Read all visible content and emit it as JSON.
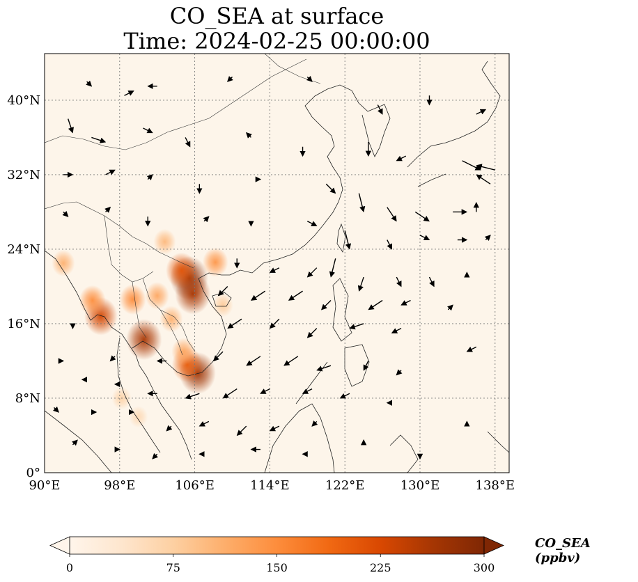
{
  "title_line1": "CO_SEA at surface",
  "title_line2": "Time: 2024-02-25 00:00:00",
  "map": {
    "lon_range": [
      90,
      139.5
    ],
    "lat_range": [
      0,
      45
    ],
    "lon_ticks": [
      {
        "value": 90,
        "label": "90°E"
      },
      {
        "value": 98,
        "label": "98°E"
      },
      {
        "value": 106,
        "label": "106°E"
      },
      {
        "value": 114,
        "label": "114°E"
      },
      {
        "value": 122,
        "label": "122°E"
      },
      {
        "value": 130,
        "label": "130°E"
      },
      {
        "value": 138,
        "label": "138°E"
      }
    ],
    "lat_ticks": [
      {
        "value": 0,
        "label": "0°"
      },
      {
        "value": 8,
        "label": "8°N"
      },
      {
        "value": 16,
        "label": "16°N"
      },
      {
        "value": 24,
        "label": "24°N"
      },
      {
        "value": 32,
        "label": "32°N"
      },
      {
        "value": 40,
        "label": "40°N"
      }
    ],
    "gridlines": true,
    "background_color": "#fdf5ea",
    "hotspots": [
      {
        "lon": 105.4,
        "lat": 20.9,
        "value": 290
      },
      {
        "lon": 105.8,
        "lat": 19.2,
        "value": 260
      },
      {
        "lon": 104.6,
        "lat": 21.7,
        "value": 210
      },
      {
        "lon": 100.6,
        "lat": 14.3,
        "value": 260
      },
      {
        "lon": 106.3,
        "lat": 10.7,
        "value": 270
      },
      {
        "lon": 105.2,
        "lat": 11.6,
        "value": 200
      },
      {
        "lon": 96.0,
        "lat": 16.8,
        "value": 230
      },
      {
        "lon": 95.1,
        "lat": 18.5,
        "value": 150
      },
      {
        "lon": 99.4,
        "lat": 18.6,
        "value": 150
      },
      {
        "lon": 102.0,
        "lat": 19.0,
        "value": 120
      },
      {
        "lon": 103.5,
        "lat": 16.5,
        "value": 110
      },
      {
        "lon": 102.8,
        "lat": 24.8,
        "value": 100
      },
      {
        "lon": 92.0,
        "lat": 22.5,
        "value": 110
      },
      {
        "lon": 108.2,
        "lat": 22.6,
        "value": 140
      },
      {
        "lon": 104.8,
        "lat": 13.0,
        "value": 120
      },
      {
        "lon": 109.0,
        "lat": 18.0,
        "value": 80
      },
      {
        "lon": 98.2,
        "lat": 8.0,
        "value": 70
      },
      {
        "lon": 100.0,
        "lat": 6.0,
        "value": 60
      }
    ],
    "wind_vectors": [
      {
        "lon": 94.5,
        "lat": 42,
        "u": 1,
        "v": -1
      },
      {
        "lon": 98.5,
        "lat": 40.5,
        "u": 2,
        "v": 1
      },
      {
        "lon": 102,
        "lat": 41.5,
        "u": -2,
        "v": 0
      },
      {
        "lon": 110,
        "lat": 42.5,
        "u": -1,
        "v": -1
      },
      {
        "lon": 118,
        "lat": 42.5,
        "u": 1,
        "v": -1
      },
      {
        "lon": 125.5,
        "lat": 39.5,
        "u": 1,
        "v": -2
      },
      {
        "lon": 131,
        "lat": 40.5,
        "u": 0,
        "v": -2
      },
      {
        "lon": 136,
        "lat": 38.5,
        "u": 2,
        "v": 1
      },
      {
        "lon": 92.5,
        "lat": 38,
        "u": 1,
        "v": -3
      },
      {
        "lon": 95,
        "lat": 36,
        "u": 3,
        "v": -1
      },
      {
        "lon": 100.5,
        "lat": 37,
        "u": 2,
        "v": -1
      },
      {
        "lon": 105,
        "lat": 36,
        "u": 1,
        "v": -2
      },
      {
        "lon": 112,
        "lat": 36,
        "u": -1,
        "v": 1
      },
      {
        "lon": 117.5,
        "lat": 35,
        "u": 0,
        "v": -2
      },
      {
        "lon": 124.5,
        "lat": 35.5,
        "u": 0,
        "v": -3
      },
      {
        "lon": 128.5,
        "lat": 34,
        "u": -2,
        "v": -1
      },
      {
        "lon": 134.5,
        "lat": 33.5,
        "u": 4,
        "v": -2
      },
      {
        "lon": 138,
        "lat": 32.5,
        "u": -4,
        "v": 1
      },
      {
        "lon": 137.5,
        "lat": 31,
        "u": -3,
        "v": 2
      },
      {
        "lon": 92,
        "lat": 32,
        "u": 2,
        "v": 0
      },
      {
        "lon": 96.5,
        "lat": 32,
        "u": 2,
        "v": 1
      },
      {
        "lon": 101,
        "lat": 31.5,
        "u": 1,
        "v": 1
      },
      {
        "lon": 106.5,
        "lat": 31,
        "u": 0,
        "v": -2
      },
      {
        "lon": 112.5,
        "lat": 31.5,
        "u": 1,
        "v": 0
      },
      {
        "lon": 120,
        "lat": 31,
        "u": 2,
        "v": -2
      },
      {
        "lon": 123.5,
        "lat": 30,
        "u": 1,
        "v": -4
      },
      {
        "lon": 126.5,
        "lat": 28.5,
        "u": 2,
        "v": -3
      },
      {
        "lon": 129.5,
        "lat": 28,
        "u": 3,
        "v": -2
      },
      {
        "lon": 133.5,
        "lat": 28,
        "u": 3,
        "v": 0
      },
      {
        "lon": 136,
        "lat": 28,
        "u": 0,
        "v": 2
      },
      {
        "lon": 92,
        "lat": 28,
        "u": 1,
        "v": -1
      },
      {
        "lon": 96.5,
        "lat": 28,
        "u": 1,
        "v": 1
      },
      {
        "lon": 101,
        "lat": 27.5,
        "u": 0,
        "v": -2
      },
      {
        "lon": 107,
        "lat": 27,
        "u": 1,
        "v": 1
      },
      {
        "lon": 112,
        "lat": 27,
        "u": 0,
        "v": -1
      },
      {
        "lon": 118,
        "lat": 27,
        "u": 2,
        "v": -1
      },
      {
        "lon": 122,
        "lat": 26,
        "u": 1,
        "v": -4
      },
      {
        "lon": 126.5,
        "lat": 25,
        "u": 1,
        "v": -2
      },
      {
        "lon": 130,
        "lat": 25.5,
        "u": 2,
        "v": -1
      },
      {
        "lon": 134,
        "lat": 25,
        "u": 2,
        "v": 0
      },
      {
        "lon": 137,
        "lat": 25,
        "u": 1,
        "v": 1
      },
      {
        "lon": 110.5,
        "lat": 23,
        "u": 0,
        "v": -2
      },
      {
        "lon": 115,
        "lat": 22,
        "u": -2,
        "v": -1
      },
      {
        "lon": 119,
        "lat": 22,
        "u": -2,
        "v": -2
      },
      {
        "lon": 121,
        "lat": 23,
        "u": -1,
        "v": -4
      },
      {
        "lon": 124,
        "lat": 21,
        "u": -1,
        "v": -3
      },
      {
        "lon": 127.5,
        "lat": 21,
        "u": 1,
        "v": -2
      },
      {
        "lon": 131,
        "lat": 21,
        "u": 1,
        "v": -2
      },
      {
        "lon": 135,
        "lat": 21,
        "u": 0,
        "v": 1
      },
      {
        "lon": 109.5,
        "lat": 20,
        "u": -2,
        "v": -2
      },
      {
        "lon": 113.5,
        "lat": 19.5,
        "u": -3,
        "v": -2
      },
      {
        "lon": 117.5,
        "lat": 19.5,
        "u": -3,
        "v": -2
      },
      {
        "lon": 120.5,
        "lat": 18.5,
        "u": -2,
        "v": -2
      },
      {
        "lon": 126,
        "lat": 18.5,
        "u": -3,
        "v": -2
      },
      {
        "lon": 129,
        "lat": 18.5,
        "u": -2,
        "v": -1
      },
      {
        "lon": 133,
        "lat": 17.5,
        "u": 1,
        "v": 1
      },
      {
        "lon": 111,
        "lat": 16.5,
        "u": -3,
        "v": -2
      },
      {
        "lon": 115,
        "lat": 16.5,
        "u": -2,
        "v": -2
      },
      {
        "lon": 119,
        "lat": 15.5,
        "u": -2,
        "v": -2
      },
      {
        "lon": 124,
        "lat": 16,
        "u": -3,
        "v": -1
      },
      {
        "lon": 128,
        "lat": 15.5,
        "u": -2,
        "v": -1
      },
      {
        "lon": 136,
        "lat": 13.5,
        "u": -2,
        "v": -1
      },
      {
        "lon": 93,
        "lat": 16,
        "u": 0,
        "v": -1
      },
      {
        "lon": 97.5,
        "lat": 12.5,
        "u": -1,
        "v": -1
      },
      {
        "lon": 103,
        "lat": 12,
        "u": -2,
        "v": 0
      },
      {
        "lon": 109,
        "lat": 13,
        "u": -2,
        "v": -2
      },
      {
        "lon": 113,
        "lat": 12.5,
        "u": -3,
        "v": -2
      },
      {
        "lon": 117,
        "lat": 12.5,
        "u": -3,
        "v": -2
      },
      {
        "lon": 120.5,
        "lat": 11.5,
        "u": -3,
        "v": -1
      },
      {
        "lon": 124.5,
        "lat": 12,
        "u": -1,
        "v": -2
      },
      {
        "lon": 128,
        "lat": 11,
        "u": -1,
        "v": -1
      },
      {
        "lon": 91.5,
        "lat": 12,
        "u": 1,
        "v": 0
      },
      {
        "lon": 94.5,
        "lat": 10,
        "u": -1,
        "v": 0
      },
      {
        "lon": 98,
        "lat": 9.5,
        "u": -1,
        "v": 0
      },
      {
        "lon": 102,
        "lat": 8.5,
        "u": -2,
        "v": 0
      },
      {
        "lon": 106.5,
        "lat": 8.5,
        "u": -3,
        "v": -1
      },
      {
        "lon": 110.5,
        "lat": 9,
        "u": -3,
        "v": -2
      },
      {
        "lon": 114,
        "lat": 9,
        "u": -2,
        "v": -1
      },
      {
        "lon": 118.5,
        "lat": 9,
        "u": -2,
        "v": -1
      },
      {
        "lon": 122.5,
        "lat": 8.5,
        "u": -2,
        "v": -1
      },
      {
        "lon": 127,
        "lat": 7.5,
        "u": -1,
        "v": 0
      },
      {
        "lon": 91,
        "lat": 7,
        "u": 1,
        "v": -1
      },
      {
        "lon": 95,
        "lat": 6.5,
        "u": 1,
        "v": 0
      },
      {
        "lon": 99,
        "lat": 6.5,
        "u": 1,
        "v": 0
      },
      {
        "lon": 103.5,
        "lat": 5,
        "u": -1,
        "v": -1
      },
      {
        "lon": 107.5,
        "lat": 5.5,
        "u": -2,
        "v": -1
      },
      {
        "lon": 111.5,
        "lat": 5,
        "u": -2,
        "v": -2
      },
      {
        "lon": 115,
        "lat": 5,
        "u": -2,
        "v": -1
      },
      {
        "lon": 119,
        "lat": 5.5,
        "u": -1,
        "v": -1
      },
      {
        "lon": 93,
        "lat": 3,
        "u": 1,
        "v": 1
      },
      {
        "lon": 97.5,
        "lat": 2.5,
        "u": 1,
        "v": 0
      },
      {
        "lon": 102,
        "lat": 2,
        "u": -1,
        "v": -1
      },
      {
        "lon": 107,
        "lat": 2,
        "u": -1,
        "v": 0
      },
      {
        "lon": 113,
        "lat": 2.5,
        "u": -2,
        "v": 0
      },
      {
        "lon": 118,
        "lat": 2,
        "u": -1,
        "v": 0
      },
      {
        "lon": 124,
        "lat": 3,
        "u": 0,
        "v": 1
      },
      {
        "lon": 130,
        "lat": 2,
        "u": 0,
        "v": -1
      },
      {
        "lon": 135,
        "lat": 5,
        "u": 0,
        "v": 1
      }
    ]
  },
  "colorbar": {
    "label": "CO_SEA (ppbv)",
    "min": 0,
    "max": 300,
    "ticks": [
      {
        "value": 0,
        "label": "0"
      },
      {
        "value": 75,
        "label": "75"
      },
      {
        "value": 150,
        "label": "150"
      },
      {
        "value": 225,
        "label": "225"
      },
      {
        "value": 300,
        "label": "300"
      }
    ],
    "colors": [
      "#fff5eb",
      "#fee6ce",
      "#fdd0a2",
      "#fdae6b",
      "#fd8d3c",
      "#f16913",
      "#d94801",
      "#a63603",
      "#7f2704"
    ],
    "extend": "both"
  }
}
